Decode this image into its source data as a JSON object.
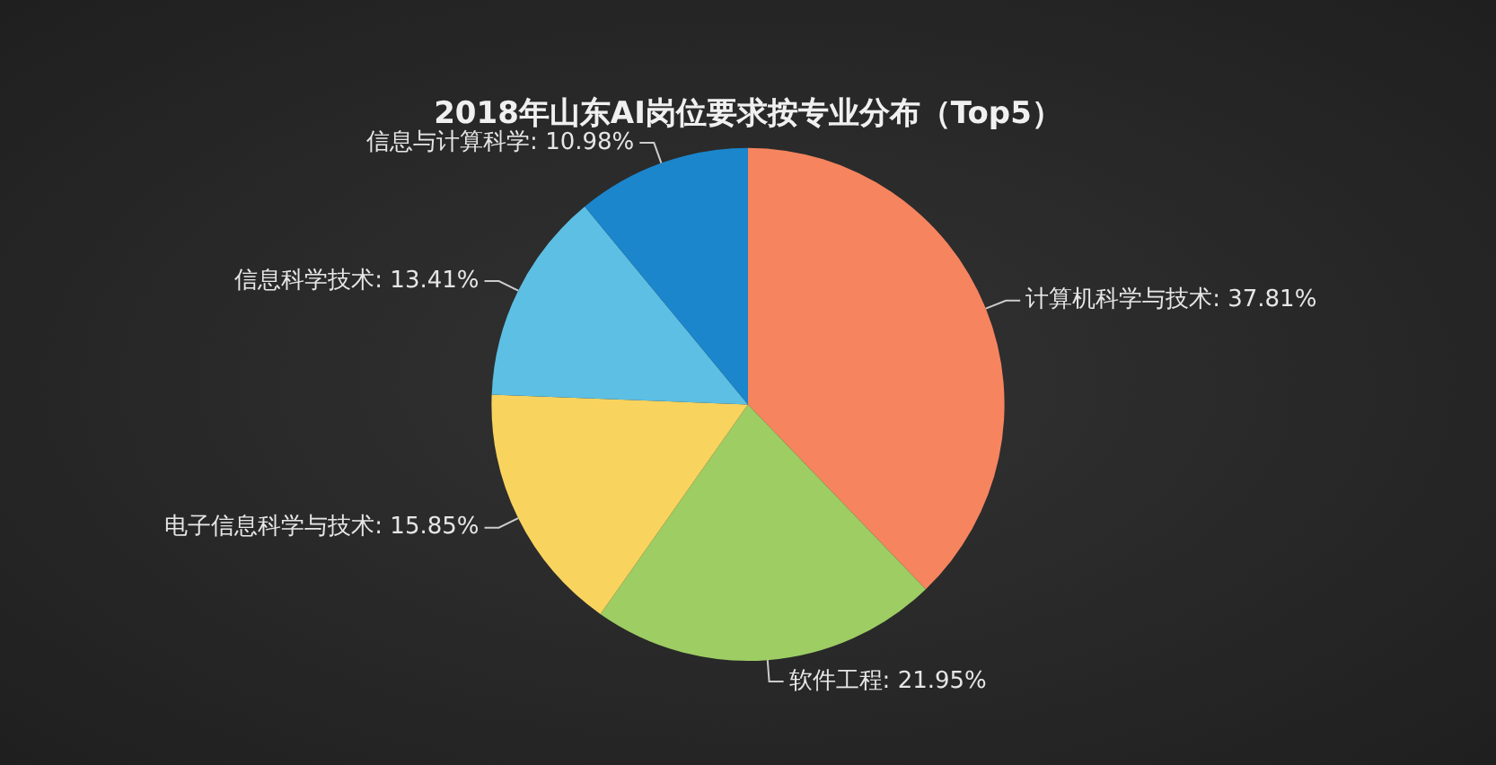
{
  "chart_data": {
    "type": "pie",
    "title": "2018年山东AI岗位要求按专业分布（Top5）",
    "categories": [
      "计算机科学与技术",
      "软件工程",
      "电子信息科学与技术",
      "信息科学技术",
      "信息与计算科学"
    ],
    "values": [
      37.81,
      21.95,
      15.85,
      13.41,
      10.98
    ],
    "value_labels": [
      "37.81%",
      "21.95%",
      "15.85%",
      "13.41%",
      "10.98%"
    ],
    "colors": [
      "#f6845f",
      "#9dcd63",
      "#f8d35e",
      "#5cbfe3",
      "#1b86cc"
    ],
    "legend": false
  }
}
